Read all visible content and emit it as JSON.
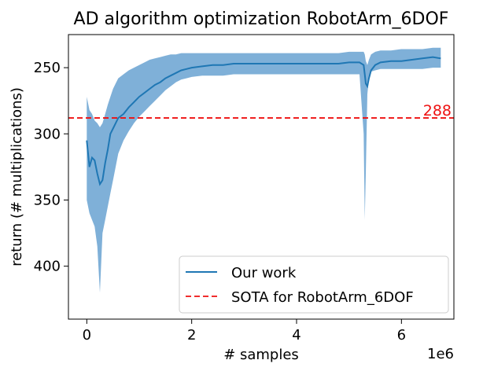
{
  "chart_data": {
    "type": "line",
    "title": "AD algorithm optimization RobotArm_6DOF",
    "xlabel": "# samples",
    "ylabel": "return (# multiplications)",
    "x_offset_label": "1e6",
    "xlim": [
      -0.35,
      7.0
    ],
    "ylim": [
      440,
      225
    ],
    "y_inverted": true,
    "x_ticks": [
      0,
      2,
      4,
      6
    ],
    "x_tick_labels": [
      "0",
      "2",
      "4",
      "6"
    ],
    "y_ticks": [
      250,
      300,
      350,
      400
    ],
    "y_tick_labels": [
      "250",
      "300",
      "350",
      "400"
    ],
    "grid": false,
    "legend_position": "lower-right",
    "series": [
      {
        "name": "Our work",
        "color": "#1f77b4",
        "band_color": "#7fb0d8",
        "x": [
          0,
          0.05,
          0.1,
          0.15,
          0.2,
          0.25,
          0.3,
          0.35,
          0.4,
          0.45,
          0.5,
          0.55,
          0.6,
          0.7,
          0.8,
          0.9,
          1.0,
          1.1,
          1.2,
          1.3,
          1.4,
          1.5,
          1.6,
          1.7,
          1.8,
          1.9,
          2.0,
          2.2,
          2.4,
          2.6,
          2.8,
          3.0,
          3.2,
          3.4,
          3.6,
          3.8,
          4.0,
          4.2,
          4.4,
          4.6,
          4.8,
          5.0,
          5.2,
          5.28,
          5.3,
          5.32,
          5.35,
          5.38,
          5.42,
          5.5,
          5.6,
          5.8,
          6.0,
          6.2,
          6.4,
          6.6,
          6.75
        ],
        "mean": [
          305,
          325,
          318,
          320,
          330,
          338,
          335,
          322,
          312,
          300,
          296,
          292,
          288,
          285,
          280,
          276,
          272,
          269,
          266,
          263,
          261,
          258,
          256,
          254,
          252,
          251,
          250,
          249,
          248,
          248,
          247,
          247,
          247,
          247,
          247,
          247,
          247,
          247,
          247,
          247,
          247,
          246,
          246,
          248,
          255,
          262,
          264,
          258,
          252,
          248,
          246,
          245,
          245,
          244,
          243,
          242,
          243
        ],
        "upper": [
          350,
          360,
          365,
          370,
          385,
          420,
          375,
          365,
          355,
          345,
          335,
          325,
          315,
          305,
          298,
          292,
          287,
          283,
          279,
          275,
          271,
          267,
          264,
          261,
          259,
          258,
          257,
          256,
          256,
          256,
          255,
          255,
          255,
          255,
          255,
          255,
          255,
          255,
          255,
          255,
          255,
          255,
          255,
          300,
          365,
          330,
          270,
          258,
          253,
          252,
          251,
          251,
          251,
          251,
          251,
          250,
          250
        ],
        "lower": [
          272,
          282,
          285,
          290,
          292,
          295,
          292,
          285,
          278,
          272,
          266,
          262,
          258,
          255,
          252,
          250,
          248,
          246,
          244,
          243,
          242,
          241,
          240,
          240,
          239,
          239,
          239,
          239,
          239,
          239,
          239,
          239,
          239,
          239,
          239,
          239,
          239,
          239,
          239,
          239,
          239,
          238,
          238,
          238,
          240,
          245,
          248,
          244,
          240,
          238,
          237,
          237,
          236,
          236,
          236,
          235,
          235
        ]
      },
      {
        "name": "SOTA for RobotArm_6DOF",
        "type": "hline",
        "color": "#ee1111",
        "dash": "dashed",
        "y": 288,
        "annotation": "288"
      }
    ]
  }
}
